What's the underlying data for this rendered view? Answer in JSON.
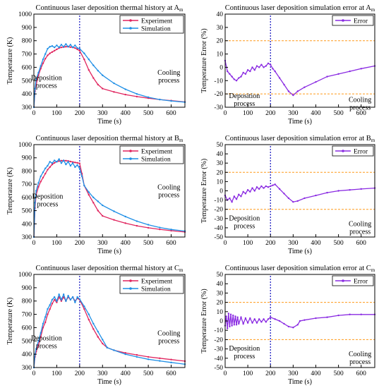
{
  "colors": {
    "experiment": "#e0245e",
    "simulation": "#1f8fe6",
    "error": "#8a2be2",
    "divider": "#1010c0",
    "threshold": "#ff9a1a"
  },
  "chart_data": [
    {
      "id": "temp-A",
      "type": "line",
      "title": "Continuous laser deposition thermal history at A",
      "title_sub": "m",
      "xlabel": "Time (s)",
      "ylabel": "Temperature (K)",
      "xlim": [
        0,
        660
      ],
      "ylim": [
        300,
        1000
      ],
      "xticks": [
        0,
        100,
        200,
        300,
        400,
        500,
        600
      ],
      "yticks": [
        300,
        400,
        500,
        600,
        700,
        800,
        900,
        1000
      ],
      "legend": "top-right",
      "annotations": [
        {
          "text": [
            "Deposition",
            "process"
          ],
          "x": 55,
          "y": 505
        },
        {
          "text": [
            "Cooling",
            "process"
          ],
          "x": 590,
          "y": 545
        }
      ],
      "vline": 200,
      "series": [
        {
          "name": "Experiment",
          "color": "#e0245e",
          "x": [
            0,
            5,
            10,
            20,
            30,
            40,
            50,
            60,
            70,
            80,
            90,
            100,
            110,
            120,
            130,
            140,
            150,
            160,
            170,
            180,
            190,
            200,
            220,
            240,
            260,
            280,
            300,
            350,
            400,
            450,
            500,
            550,
            600,
            660
          ],
          "y": [
            300,
            420,
            470,
            540,
            590,
            630,
            665,
            690,
            705,
            715,
            725,
            735,
            745,
            750,
            752,
            755,
            755,
            752,
            750,
            745,
            735,
            725,
            660,
            580,
            520,
            470,
            440,
            415,
            395,
            380,
            368,
            358,
            350,
            340
          ]
        },
        {
          "name": "Simulation",
          "color": "#1f8fe6",
          "x": [
            0,
            5,
            10,
            20,
            30,
            40,
            50,
            60,
            70,
            80,
            90,
            100,
            110,
            120,
            130,
            140,
            150,
            160,
            170,
            180,
            190,
            200,
            220,
            240,
            260,
            280,
            300,
            350,
            400,
            450,
            500,
            550,
            600,
            660
          ],
          "y": [
            300,
            440,
            510,
            560,
            610,
            660,
            700,
            740,
            755,
            760,
            750,
            765,
            750,
            770,
            755,
            775,
            755,
            770,
            750,
            765,
            745,
            740,
            705,
            660,
            615,
            575,
            540,
            480,
            435,
            400,
            375,
            358,
            347,
            338
          ]
        }
      ]
    },
    {
      "id": "err-A",
      "type": "line",
      "title": "Continuous laser deposition simulation error at A",
      "title_sub": "m",
      "xlabel": "Time (s)",
      "ylabel": "Temperature Error (%)",
      "xlim": [
        0,
        660
      ],
      "ylim": [
        -30,
        40
      ],
      "xticks": [
        0,
        100,
        200,
        300,
        400,
        500,
        600
      ],
      "yticks": [
        -30,
        -20,
        -10,
        0,
        10,
        20,
        30,
        40
      ],
      "hlines": [
        20,
        -20
      ],
      "legend": "top-right",
      "annotations": [
        {
          "text": [
            "Deposition",
            "process"
          ],
          "x": 85,
          "y": -23
        },
        {
          "text": [
            "Cooling",
            "process"
          ],
          "x": 595,
          "y": -26
        }
      ],
      "vline": 200,
      "series": [
        {
          "name": "Error",
          "color": "#8a2be2",
          "x": [
            0,
            10,
            20,
            30,
            40,
            50,
            60,
            70,
            80,
            90,
            100,
            110,
            120,
            130,
            140,
            150,
            160,
            170,
            180,
            190,
            200,
            210,
            220,
            240,
            260,
            280,
            300,
            320,
            350,
            400,
            450,
            500,
            550,
            600,
            660
          ],
          "y": [
            5,
            -3,
            -5,
            -7,
            -9,
            -10,
            -8,
            -7,
            -4,
            -5,
            -2,
            -3,
            0,
            -2,
            1,
            0,
            2,
            0,
            1,
            3,
            2,
            -1,
            -3,
            -8,
            -13,
            -18,
            -21,
            -18,
            -15,
            -11,
            -7,
            -5,
            -3,
            -1,
            1
          ]
        }
      ]
    },
    {
      "id": "temp-B",
      "type": "line",
      "title": "Continuous laser deposition thermal history at B",
      "title_sub": "m",
      "xlabel": "Time (s)",
      "ylabel": "Temperature (K)",
      "xlim": [
        0,
        660
      ],
      "ylim": [
        300,
        1000
      ],
      "xticks": [
        0,
        100,
        200,
        300,
        400,
        500,
        600
      ],
      "yticks": [
        300,
        400,
        500,
        600,
        700,
        800,
        900,
        1000
      ],
      "legend": "top-right",
      "annotations": [
        {
          "text": [
            "Deposition",
            "process"
          ],
          "x": 60,
          "y": 590
        },
        {
          "text": [
            "Cooling",
            "process"
          ],
          "x": 590,
          "y": 660
        }
      ],
      "vline": 200,
      "series": [
        {
          "name": "Experiment",
          "color": "#e0245e",
          "x": [
            0,
            5,
            10,
            20,
            30,
            40,
            50,
            60,
            70,
            80,
            90,
            100,
            110,
            120,
            130,
            140,
            150,
            160,
            170,
            180,
            190,
            200,
            210,
            220,
            240,
            260,
            280,
            300,
            350,
            400,
            450,
            500,
            550,
            600,
            660
          ],
          "y": [
            300,
            520,
            620,
            680,
            720,
            750,
            780,
            810,
            830,
            850,
            862,
            870,
            875,
            878,
            880,
            878,
            876,
            872,
            868,
            865,
            862,
            858,
            780,
            690,
            620,
            560,
            500,
            460,
            430,
            405,
            385,
            370,
            358,
            348,
            338
          ]
        },
        {
          "name": "Simulation",
          "color": "#1f8fe6",
          "x": [
            0,
            5,
            10,
            20,
            30,
            40,
            50,
            60,
            70,
            80,
            90,
            100,
            110,
            120,
            130,
            140,
            150,
            160,
            170,
            180,
            190,
            200,
            210,
            220,
            240,
            260,
            280,
            300,
            350,
            400,
            450,
            500,
            550,
            600,
            660
          ],
          "y": [
            300,
            560,
            650,
            710,
            760,
            790,
            820,
            840,
            870,
            860,
            880,
            870,
            890,
            860,
            880,
            850,
            870,
            840,
            860,
            830,
            845,
            820,
            760,
            690,
            640,
            600,
            570,
            540,
            495,
            455,
            420,
            393,
            372,
            357,
            345
          ]
        }
      ]
    },
    {
      "id": "err-B",
      "type": "line",
      "title": "Continuous laser deposition simulation error at B",
      "title_sub": "m",
      "xlabel": "Time (s)",
      "ylabel": "Temperature Error (%)",
      "xlim": [
        0,
        660
      ],
      "ylim": [
        -50,
        50
      ],
      "xticks": [
        0,
        100,
        200,
        300,
        400,
        500,
        600
      ],
      "yticks": [
        -50,
        -40,
        -30,
        -20,
        -10,
        0,
        10,
        20,
        30,
        40,
        50
      ],
      "hlines": [
        20,
        -20
      ],
      "legend": "top-right",
      "annotations": [
        {
          "text": [
            "Deposition",
            "process"
          ],
          "x": 85,
          "y": -32
        },
        {
          "text": [
            "Cooling",
            "process"
          ],
          "x": 595,
          "y": -38
        }
      ],
      "vline": 200,
      "series": [
        {
          "name": "Error",
          "color": "#8a2be2",
          "x": [
            0,
            10,
            20,
            30,
            40,
            50,
            60,
            70,
            80,
            90,
            100,
            110,
            120,
            130,
            140,
            150,
            160,
            170,
            180,
            190,
            200,
            210,
            220,
            240,
            260,
            280,
            300,
            320,
            350,
            400,
            450,
            500,
            550,
            600,
            660
          ],
          "y": [
            -5,
            -10,
            -8,
            -12,
            -6,
            -9,
            -4,
            -6,
            -1,
            -3,
            1,
            -1,
            3,
            0,
            4,
            2,
            5,
            3,
            5,
            4,
            5,
            6,
            7,
            2,
            -3,
            -8,
            -12,
            -11,
            -8,
            -5,
            -2,
            0,
            1,
            2,
            3
          ]
        }
      ]
    },
    {
      "id": "temp-C",
      "type": "line",
      "title": "Continuous laser deposition thermal history at C",
      "title_sub": "m",
      "xlabel": "Time (s)",
      "ylabel": "Temperature (K)",
      "xlim": [
        0,
        660
      ],
      "ylim": [
        300,
        1000
      ],
      "xticks": [
        0,
        100,
        200,
        300,
        400,
        500,
        600
      ],
      "yticks": [
        300,
        400,
        500,
        600,
        700,
        800,
        900,
        1000
      ],
      "legend": "top-right",
      "annotations": [
        {
          "text": [
            "Deposition",
            "process"
          ],
          "x": 55,
          "y": 505
        },
        {
          "text": [
            "Cooling",
            "process"
          ],
          "x": 590,
          "y": 540
        }
      ],
      "vline": 200,
      "series": [
        {
          "name": "Experiment",
          "color": "#e0245e",
          "x": [
            0,
            5,
            10,
            20,
            30,
            40,
            50,
            60,
            70,
            80,
            90,
            100,
            110,
            120,
            130,
            140,
            150,
            160,
            170,
            180,
            190,
            200,
            220,
            240,
            260,
            280,
            300,
            320,
            350,
            400,
            450,
            500,
            550,
            600,
            660
          ],
          "y": [
            300,
            380,
            420,
            470,
            530,
            600,
            640,
            700,
            740,
            780,
            810,
            790,
            830,
            800,
            830,
            800,
            830,
            810,
            830,
            800,
            820,
            810,
            740,
            660,
            590,
            530,
            480,
            450,
            430,
            410,
            395,
            380,
            370,
            360,
            348
          ]
        },
        {
          "name": "Simulation",
          "color": "#1f8fe6",
          "x": [
            0,
            5,
            10,
            20,
            30,
            40,
            50,
            60,
            70,
            80,
            90,
            100,
            110,
            120,
            130,
            140,
            150,
            160,
            170,
            180,
            190,
            200,
            220,
            240,
            260,
            280,
            300,
            320,
            350,
            400,
            450,
            500,
            550,
            600,
            660
          ],
          "y": [
            300,
            400,
            440,
            500,
            560,
            630,
            680,
            740,
            770,
            810,
            830,
            800,
            850,
            810,
            850,
            800,
            840,
            810,
            830,
            790,
            830,
            815,
            760,
            700,
            630,
            570,
            510,
            450,
            430,
            400,
            380,
            362,
            350,
            338,
            325
          ]
        }
      ]
    },
    {
      "id": "err-C",
      "type": "line",
      "title": "Continuous laser deposition simulation error at C",
      "title_sub": "m",
      "xlabel": "Time (s)",
      "ylabel": "Temperature Error (%)",
      "xlim": [
        0,
        660
      ],
      "ylim": [
        -50,
        50
      ],
      "xticks": [
        0,
        100,
        200,
        300,
        400,
        500,
        600
      ],
      "yticks": [
        -50,
        -40,
        -30,
        -20,
        -10,
        0,
        10,
        20,
        30,
        40,
        50
      ],
      "hlines": [
        20,
        -20
      ],
      "legend": "top-right",
      "annotations": [
        {
          "text": [
            "Deposition",
            "process"
          ],
          "x": 85,
          "y": -32
        },
        {
          "text": [
            "Cooling",
            "process"
          ],
          "x": 595,
          "y": -38
        }
      ],
      "vline": 200,
      "series": [
        {
          "name": "Error",
          "color": "#8a2be2",
          "x": [
            0,
            5,
            10,
            15,
            20,
            25,
            30,
            35,
            40,
            45,
            50,
            55,
            60,
            70,
            80,
            90,
            100,
            110,
            120,
            130,
            140,
            150,
            160,
            170,
            180,
            190,
            200,
            220,
            240,
            260,
            280,
            300,
            320,
            330,
            350,
            400,
            450,
            500,
            550,
            600,
            660
          ],
          "y": [
            -5,
            5,
            -8,
            8,
            -6,
            7,
            -5,
            6,
            -4,
            5,
            -4,
            4,
            -3,
            4,
            -3,
            3,
            -2,
            3,
            -2,
            2,
            -2,
            2,
            -1,
            2,
            -1,
            2,
            4,
            2,
            0,
            -3,
            -6,
            -7,
            -4,
            0,
            1,
            3,
            4,
            6,
            7,
            7,
            7
          ]
        }
      ]
    }
  ]
}
